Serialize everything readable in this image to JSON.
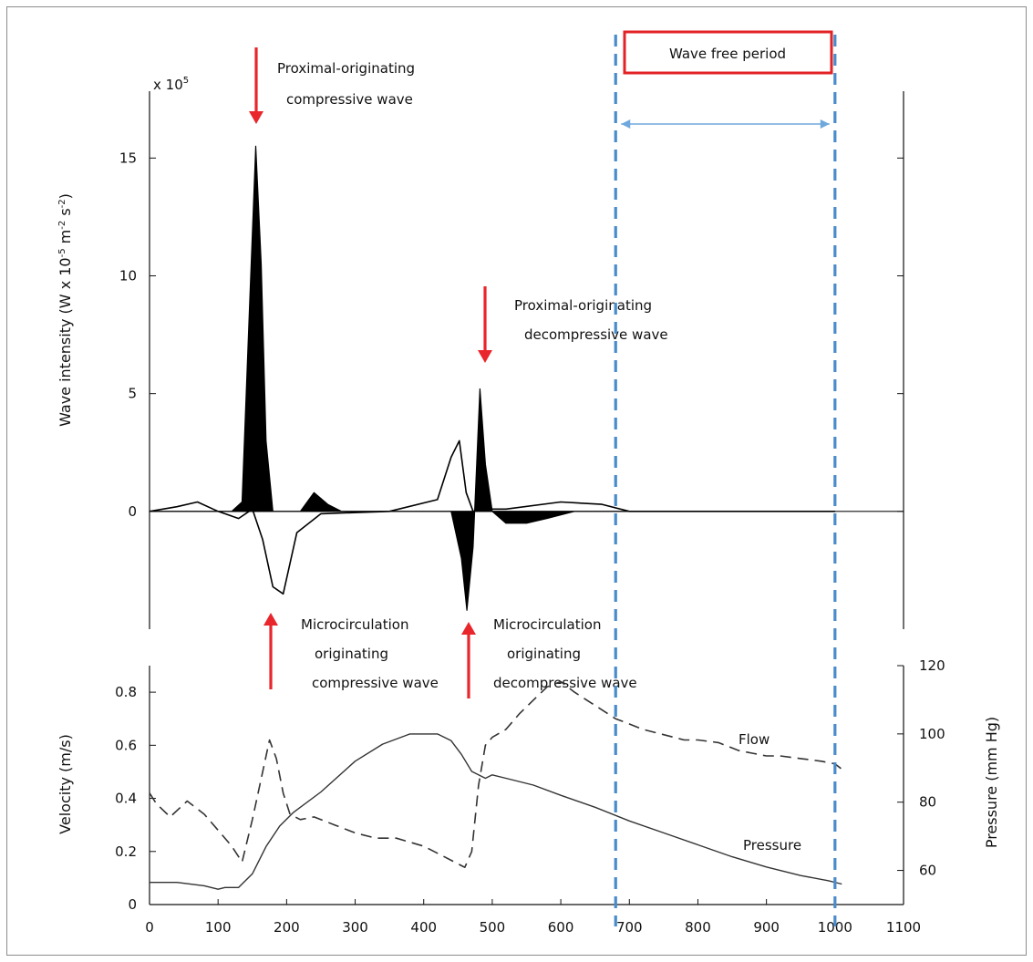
{
  "chart_data": [
    {
      "type": "area",
      "panel": "wave-intensity",
      "ylabel": "Wave intensity (W x 10",
      "ylabel_exp1": "-5",
      "ylabel_mid": " m",
      "ylabel_exp2": "-2",
      "ylabel_s": " s",
      "ylabel_exp3": "-2",
      "ylabel_close": ")",
      "scale_label": "x 10",
      "scale_exp": "5",
      "ylim": [
        -5,
        19
      ],
      "yticks": [
        15,
        10,
        5,
        0
      ],
      "series": [
        {
          "name": "",
          "style": "filled-black",
          "x": [
            0,
            30,
            60,
            90,
            120,
            135,
            145,
            155,
            163,
            170,
            180,
            190,
            200,
            220,
            240,
            260,
            280,
            320,
            400,
            440,
            455,
            463,
            472,
            482,
            490,
            500,
            520,
            550,
            580,
            620,
            700,
            800,
            1000
          ],
          "y": [
            0,
            0,
            0,
            0,
            0,
            0.4,
            8,
            15.5,
            10.5,
            3,
            0,
            0,
            0,
            0,
            0.8,
            0.3,
            0,
            0,
            0,
            0,
            -2,
            -4.2,
            -1.5,
            5.2,
            2,
            0,
            -0.5,
            -0.5,
            -0.3,
            0,
            0,
            0,
            0
          ]
        },
        {
          "name": "",
          "style": "line",
          "x": [
            0,
            40,
            70,
            100,
            130,
            150,
            165,
            180,
            195,
            215,
            250,
            350,
            420,
            440,
            452,
            462,
            472,
            485,
            520,
            600,
            660,
            700,
            1000
          ],
          "y": [
            0,
            0.2,
            0.4,
            0,
            -0.3,
            0.1,
            -1.2,
            -3.2,
            -3.5,
            -0.9,
            -0.1,
            0,
            0.5,
            2.3,
            3,
            0.8,
            0,
            0.1,
            0.1,
            0.4,
            0.3,
            0,
            0
          ]
        }
      ]
    },
    {
      "type": "line",
      "panel": "velocity-pressure",
      "xlabel": "",
      "ylabel": "Velocity (m/s)",
      "ylabel_right": "Pressure (mm Hg)",
      "xlim": [
        0,
        1100
      ],
      "xticks": [
        0,
        100,
        200,
        300,
        400,
        500,
        600,
        700,
        800,
        900,
        1000,
        1100
      ],
      "ylim": [
        0,
        0.9
      ],
      "yticks": [
        0,
        0.2,
        0.4,
        0.6,
        0.8
      ],
      "ylim_right": [
        50,
        120
      ],
      "yticks_right": [
        60,
        80,
        100,
        120
      ],
      "series": [
        {
          "name": "Flow",
          "axis": "left",
          "style": "dashed",
          "x": [
            0,
            10,
            30,
            55,
            80,
            100,
            120,
            135,
            150,
            165,
            175,
            185,
            195,
            205,
            220,
            240,
            270,
            300,
            330,
            360,
            400,
            430,
            460,
            470,
            480,
            490,
            500,
            520,
            540,
            560,
            580,
            600,
            620,
            650,
            680,
            700,
            720,
            750,
            780,
            800,
            830,
            860,
            880,
            900,
            920,
            950,
            980,
            1000,
            1010
          ],
          "y": [
            0.42,
            0.38,
            0.33,
            0.39,
            0.34,
            0.28,
            0.22,
            0.16,
            0.32,
            0.5,
            0.62,
            0.55,
            0.42,
            0.34,
            0.32,
            0.33,
            0.3,
            0.27,
            0.25,
            0.25,
            0.22,
            0.18,
            0.14,
            0.2,
            0.45,
            0.6,
            0.63,
            0.66,
            0.72,
            0.77,
            0.82,
            0.84,
            0.8,
            0.75,
            0.7,
            0.68,
            0.66,
            0.64,
            0.62,
            0.62,
            0.61,
            0.58,
            0.57,
            0.56,
            0.56,
            0.55,
            0.54,
            0.53,
            0.51
          ]
        },
        {
          "name": "Pressure",
          "axis": "right",
          "style": "solid",
          "x": [
            0,
            40,
            80,
            100,
            110,
            130,
            150,
            170,
            190,
            210,
            250,
            300,
            340,
            380,
            420,
            440,
            455,
            470,
            490,
            500,
            520,
            560,
            600,
            650,
            700,
            750,
            800,
            850,
            900,
            950,
            990,
            1010
          ],
          "y": [
            56.5,
            56.5,
            55.5,
            54.5,
            55,
            55,
            59,
            67,
            73,
            77,
            83,
            92,
            97,
            100,
            100,
            98,
            94,
            89,
            87,
            88,
            87,
            85,
            82,
            78.5,
            74.5,
            71,
            67.5,
            64,
            61,
            58.5,
            57,
            56
          ]
        }
      ]
    }
  ],
  "annotations": {
    "top_left_line1": "Proximal-originating",
    "top_left_line2": "compressive wave",
    "top_mid_line1": "Proximal-originating",
    "top_mid_line2": "decompressive wave",
    "bottom_left_line1": "Microcirculation",
    "bottom_left_line2": "originating",
    "bottom_left_line3": "compressive wave",
    "bottom_mid_line1": "Microcirculation",
    "bottom_mid_line2": "originating",
    "bottom_mid_line3": "decompressive wave",
    "wave_free_period": "Wave free period",
    "flow_label": "Flow",
    "pressure_label": "Pressure"
  },
  "colors": {
    "arrow_red": "#e8262b",
    "wave_free_box": "#e32226",
    "period_blue": "#4a8bcc",
    "bracket_blue": "#6fa8dc",
    "ink": "#111111"
  }
}
